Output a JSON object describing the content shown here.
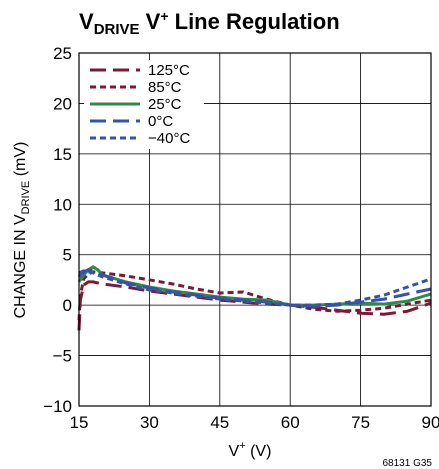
{
  "chart_data": {
    "type": "line",
    "title": {
      "main": "V",
      "main_sub": "DRIVE",
      "rest_a": " V",
      "rest_sup": "+",
      "rest_b": " Line Regulation"
    },
    "xlabel": {
      "main": "V",
      "sup": "+",
      "rest": " (V)"
    },
    "ylabel": {
      "main": "CHANGE IN V",
      "sub": "DRIVE",
      "rest": " (mV)"
    },
    "xlim": [
      15,
      90
    ],
    "ylim": [
      -10,
      25
    ],
    "xticks": [
      "15",
      "30",
      "45",
      "60",
      "75",
      "90"
    ],
    "yticks": [
      "25",
      "20",
      "15",
      "10",
      "5",
      "0",
      "−5",
      "−10"
    ],
    "grid": true,
    "legend_position": "top-left",
    "figure_code": "68131 G35",
    "series": [
      {
        "name": "125°C",
        "color": "#7b1a36",
        "dash": "long",
        "x": [
          15,
          15.3,
          16,
          17,
          18,
          20,
          25,
          30,
          35,
          40,
          45,
          50,
          55,
          60,
          65,
          70,
          75,
          80,
          85,
          90
        ],
        "y": [
          -2.5,
          0.5,
          2.0,
          2.3,
          2.3,
          2.1,
          1.8,
          1.4,
          1.1,
          0.8,
          0.5,
          0.3,
          0.1,
          0.0,
          -0.2,
          -0.5,
          -0.8,
          -0.9,
          -0.6,
          0.2
        ]
      },
      {
        "name": "85°C",
        "color": "#7b1a36",
        "dash": "short",
        "x": [
          15,
          15.3,
          16,
          17,
          18,
          20,
          25,
          30,
          35,
          40,
          45,
          50,
          55,
          60,
          65,
          70,
          75,
          80,
          85,
          90
        ],
        "y": [
          -1.5,
          1.0,
          2.6,
          3.1,
          3.3,
          3.2,
          2.9,
          2.5,
          2.1,
          1.6,
          1.2,
          1.3,
          0.6,
          0.0,
          -0.4,
          -0.6,
          -0.5,
          -0.3,
          0.1,
          0.5
        ]
      },
      {
        "name": "25°C",
        "color": "#2f8a48",
        "dash": "solid",
        "x": [
          15,
          16,
          17,
          18,
          19,
          20,
          25,
          30,
          35,
          40,
          45,
          50,
          55,
          60,
          65,
          70,
          75,
          80,
          85,
          90
        ],
        "y": [
          2.3,
          3.0,
          3.5,
          3.8,
          3.5,
          3.0,
          2.3,
          1.8,
          1.4,
          1.1,
          0.8,
          0.6,
          0.5,
          0.0,
          0.0,
          0.1,
          0.2,
          0.1,
          0.4,
          1.1
        ]
      },
      {
        "name": "0°C",
        "color": "#3553a8",
        "dash": "long",
        "x": [
          15,
          16,
          17,
          18,
          19,
          20,
          25,
          30,
          35,
          40,
          45,
          50,
          55,
          60,
          65,
          70,
          75,
          80,
          85,
          90
        ],
        "y": [
          2.8,
          3.3,
          3.5,
          3.4,
          3.2,
          3.0,
          2.2,
          1.7,
          1.3,
          1.0,
          0.7,
          0.5,
          0.3,
          0.0,
          -0.1,
          0.0,
          0.3,
          0.6,
          1.1,
          1.6
        ]
      },
      {
        "name": "−40°C",
        "color": "#3553a8",
        "dash": "short",
        "x": [
          15,
          16,
          17,
          18,
          19,
          20,
          25,
          30,
          35,
          40,
          45,
          50,
          55,
          60,
          65,
          70,
          75,
          80,
          85,
          90
        ],
        "y": [
          3.2,
          3.4,
          3.3,
          3.2,
          3.0,
          2.8,
          2.1,
          1.5,
          1.2,
          0.9,
          0.6,
          0.4,
          0.2,
          0.0,
          0.0,
          0.1,
          0.5,
          1.0,
          1.8,
          2.6
        ]
      }
    ]
  }
}
